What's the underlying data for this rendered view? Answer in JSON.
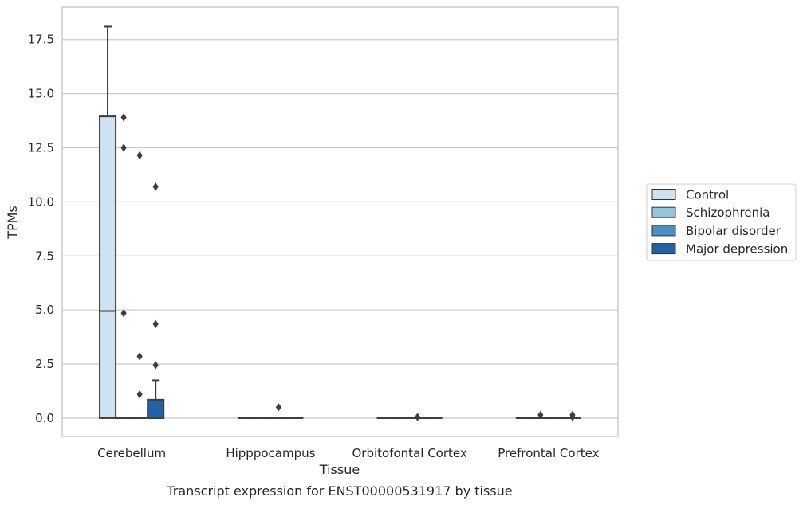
{
  "chart_data": {
    "type": "box",
    "title": "",
    "caption": "Transcript expression for ENST00000531917 by tissue",
    "xlabel": "Tissue",
    "ylabel": "TPMs",
    "ylim": [
      -0.85,
      19.0
    ],
    "yticks": [
      0.0,
      2.5,
      5.0,
      7.5,
      10.0,
      12.5,
      15.0,
      17.5
    ],
    "ytick_labels": [
      "0.0",
      "2.5",
      "5.0",
      "7.5",
      "10.0",
      "12.5",
      "15.0",
      "17.5"
    ],
    "grid": true,
    "legend_position": "right",
    "categories": [
      "Cerebellum",
      "Hipppocampus",
      "Orbitofontal Cortex",
      "Prefrontal Cortex"
    ],
    "series": [
      {
        "name": "Control",
        "color": "#d0e1f0",
        "boxes": [
          {
            "q1": 0.0,
            "median": 4.95,
            "q3": 13.95,
            "whisker_low": 0.0,
            "whisker_high": 18.1,
            "outliers": []
          },
          {
            "q1": 0.0,
            "median": 0.0,
            "q3": 0.0,
            "whisker_low": 0.0,
            "whisker_high": 0.0,
            "outliers": []
          },
          {
            "q1": 0.0,
            "median": 0.0,
            "q3": 0.0,
            "whisker_low": 0.0,
            "whisker_high": 0.0,
            "outliers": []
          },
          {
            "q1": 0.0,
            "median": 0.0,
            "q3": 0.0,
            "whisker_low": 0.0,
            "whisker_high": 0.0,
            "outliers": []
          }
        ]
      },
      {
        "name": "Schizophrenia",
        "color": "#94c4de",
        "boxes": [
          {
            "q1": 0.0,
            "median": 0.0,
            "q3": 0.0,
            "whisker_low": 0.0,
            "whisker_high": 0.0,
            "outliers": [
              13.9,
              12.5,
              4.85
            ]
          },
          {
            "q1": 0.0,
            "median": 0.0,
            "q3": 0.0,
            "whisker_low": 0.0,
            "whisker_high": 0.0,
            "outliers": []
          },
          {
            "q1": 0.0,
            "median": 0.0,
            "q3": 0.0,
            "whisker_low": 0.0,
            "whisker_high": 0.0,
            "outliers": []
          },
          {
            "q1": 0.0,
            "median": 0.0,
            "q3": 0.0,
            "whisker_low": 0.0,
            "whisker_high": 0.0,
            "outliers": [
              0.15
            ]
          }
        ]
      },
      {
        "name": "Bipolar disorder",
        "color": "#4a90c4",
        "boxes": [
          {
            "q1": 0.0,
            "median": 0.0,
            "q3": 0.0,
            "whisker_low": 0.0,
            "whisker_high": 0.0,
            "outliers": [
              12.15,
              2.85,
              1.1
            ]
          },
          {
            "q1": 0.0,
            "median": 0.0,
            "q3": 0.0,
            "whisker_low": 0.0,
            "whisker_high": 0.0,
            "outliers": [
              0.5
            ]
          },
          {
            "q1": 0.0,
            "median": 0.0,
            "q3": 0.0,
            "whisker_low": 0.0,
            "whisker_high": 0.0,
            "outliers": [
              0.05
            ]
          },
          {
            "q1": 0.0,
            "median": 0.0,
            "q3": 0.0,
            "whisker_low": 0.0,
            "whisker_high": 0.0,
            "outliers": []
          }
        ]
      },
      {
        "name": "Major depression",
        "color": "#2262a8",
        "boxes": [
          {
            "q1": 0.0,
            "median": 0.0,
            "q3": 0.85,
            "whisker_low": 0.0,
            "whisker_high": 1.75,
            "outliers": [
              10.7,
              4.35,
              2.45
            ]
          },
          {
            "q1": 0.0,
            "median": 0.0,
            "q3": 0.0,
            "whisker_low": 0.0,
            "whisker_high": 0.0,
            "outliers": []
          },
          {
            "q1": 0.0,
            "median": 0.0,
            "q3": 0.0,
            "whisker_low": 0.0,
            "whisker_high": 0.0,
            "outliers": []
          },
          {
            "q1": 0.0,
            "median": 0.0,
            "q3": 0.0,
            "whisker_low": 0.0,
            "whisker_high": 0.0,
            "outliers": [
              0.15,
              0.05
            ]
          }
        ]
      }
    ]
  }
}
